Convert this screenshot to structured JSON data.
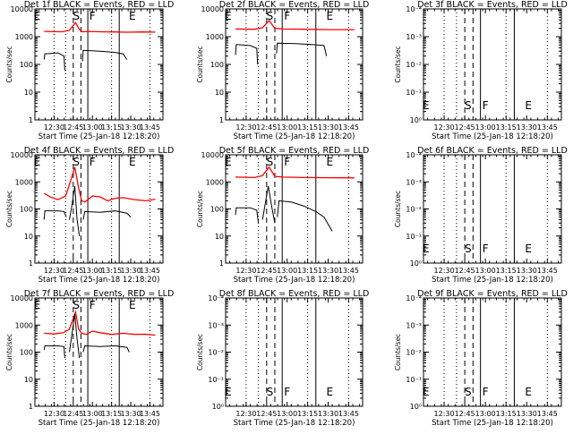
{
  "chart_data": [
    {
      "type": "line",
      "title": "Det 1f BLACK = Events, RED = LLD",
      "xlabel": "Start Time (25-Jan-18 12:18:20)",
      "ylabel": "Counts/sec",
      "yscale": "log",
      "ylim": [
        1,
        10000
      ],
      "yticks": [
        "1",
        "10",
        "100",
        "1000",
        "10000"
      ],
      "xticks": [
        "12:30",
        "12:45",
        "13:00",
        "13:15",
        "13:30",
        "13:45"
      ],
      "markers": [
        "E",
        "S",
        "F",
        "E"
      ],
      "series": [
        {
          "name": "RED = LLD",
          "color": "#ff0000",
          "segments": [
            [
              [
                12.37,
                1550
              ],
              [
                12.6,
                1500
              ],
              [
                12.7,
                1700
              ],
              [
                12.78,
                3200
              ],
              [
                12.83,
                1800
              ],
              [
                12.87,
                1500
              ],
              [
                12.95,
                1550
              ],
              [
                13.1,
                1500
              ],
              [
                13.3,
                1480
              ],
              [
                13.45,
                1450
              ],
              [
                13.65,
                1480
              ],
              [
                13.82,
                1460
              ]
            ]
          ]
        },
        {
          "name": "BLACK = Events",
          "color": "#000000",
          "segments": [
            [
              [
                12.37,
                150
              ],
              [
                12.38,
                240
              ],
              [
                12.55,
                260
              ],
              [
                12.63,
                200
              ],
              [
                12.64,
                60
              ]
            ],
            [
              [
                12.87,
                130
              ],
              [
                12.88,
                320
              ],
              [
                13.1,
                300
              ],
              [
                13.3,
                270
              ],
              [
                13.4,
                240
              ],
              [
                13.45,
                150
              ]
            ]
          ]
        }
      ]
    },
    {
      "type": "line",
      "title": "Det 2f BLACK = Events, RED = LLD",
      "xlabel": "Start Time (25-Jan-18 12:18:20)",
      "ylabel": "Counts/sec",
      "yscale": "log",
      "ylim": [
        1,
        10000
      ],
      "yticks": [
        "1",
        "10",
        "100",
        "1000",
        "10000"
      ],
      "xticks": [
        "12:30",
        "12:45",
        "13:00",
        "13:15",
        "13:30",
        "13:45"
      ],
      "markers": [
        "E",
        "S",
        "F",
        "E"
      ],
      "series": [
        {
          "name": "RED = LLD",
          "color": "#ff0000",
          "segments": [
            [
              [
                12.37,
                1900
              ],
              [
                12.6,
                1850
              ],
              [
                12.7,
                2100
              ],
              [
                12.78,
                3800
              ],
              [
                12.85,
                2000
              ],
              [
                12.95,
                1900
              ],
              [
                13.2,
                1850
              ],
              [
                13.5,
                1800
              ],
              [
                13.82,
                1800
              ]
            ]
          ]
        },
        {
          "name": "BLACK = Events",
          "color": "#000000",
          "segments": [
            [
              [
                12.37,
                220
              ],
              [
                12.38,
                520
              ],
              [
                12.55,
                480
              ],
              [
                12.63,
                380
              ],
              [
                12.64,
                100
              ]
            ],
            [
              [
                12.87,
                250
              ],
              [
                12.88,
                580
              ],
              [
                13.1,
                560
              ],
              [
                13.3,
                520
              ],
              [
                13.45,
                480
              ],
              [
                13.48,
                200
              ]
            ]
          ]
        }
      ]
    },
    {
      "type": "line",
      "title": "Det 3f BLACK = Events, RED = LLD",
      "xlabel": "Start Time (25-Jan-18 12:18:20)",
      "ylabel": "Counts/sec",
      "yscale": "log",
      "ylim": [
        1,
        0.0001
      ],
      "yticks": [
        "10⁰",
        "10⁻¹",
        "10⁻²",
        "10⁻³",
        "10⁻⁴"
      ],
      "xticks": [
        "12:30",
        "12:45",
        "13:00",
        "13:15",
        "13:30",
        "13:45"
      ],
      "markers": [
        "E",
        "S",
        "F",
        "E"
      ],
      "series": []
    },
    {
      "type": "line",
      "title": "Det 4f BLACK = Events, RED = LLD",
      "xlabel": "Start Time (25-Jan-18 12:18:20)",
      "ylabel": "Counts/sec",
      "yscale": "log",
      "ylim": [
        1,
        10000
      ],
      "yticks": [
        "1",
        "10",
        "100",
        "1000",
        "10000"
      ],
      "xticks": [
        "12:30",
        "12:45",
        "13:00",
        "13:15",
        "13:30",
        "13:45"
      ],
      "markers": [
        "E",
        "S",
        "F",
        "E"
      ],
      "series": [
        {
          "name": "RED = LLD",
          "color": "#ff0000",
          "segments": [
            [
              [
                12.37,
                380
              ],
              [
                12.45,
                280
              ],
              [
                12.55,
                220
              ],
              [
                12.65,
                300
              ],
              [
                12.72,
                1200
              ],
              [
                12.77,
                3500
              ],
              [
                12.82,
                600
              ],
              [
                12.86,
                200
              ],
              [
                12.9,
                180
              ],
              [
                13.0,
                300
              ],
              [
                13.1,
                280
              ],
              [
                13.2,
                200
              ],
              [
                13.3,
                250
              ],
              [
                13.4,
                260
              ],
              [
                13.55,
                220
              ],
              [
                13.7,
                200
              ],
              [
                13.82,
                230
              ]
            ]
          ]
        },
        {
          "name": "BLACK = Events",
          "color": "#000000",
          "segments": [
            [
              [
                12.37,
                40
              ],
              [
                12.38,
                85
              ],
              [
                12.55,
                85
              ],
              [
                12.63,
                80
              ],
              [
                12.66,
                50
              ]
            ],
            [
              [
                12.7,
                40
              ],
              [
                12.73,
                120
              ],
              [
                12.77,
                700
              ],
              [
                12.8,
                40
              ],
              [
                12.83,
                10
              ]
            ],
            [
              [
                12.88,
                40
              ],
              [
                12.9,
                80
              ],
              [
                13.1,
                75
              ],
              [
                13.3,
                85
              ],
              [
                13.45,
                70
              ],
              [
                13.5,
                50
              ]
            ]
          ]
        }
      ]
    },
    {
      "type": "line",
      "title": "Det 5f BLACK = Events, RED = LLD",
      "xlabel": "Start Time (25-Jan-18 12:18:20)",
      "ylabel": "Counts/sec",
      "yscale": "log",
      "ylim": [
        1,
        10000
      ],
      "yticks": [
        "1",
        "10",
        "100",
        "1000",
        "10000"
      ],
      "xticks": [
        "12:30",
        "12:45",
        "13:00",
        "13:15",
        "13:30",
        "13:45"
      ],
      "markers": [
        "E",
        "S",
        "F",
        "E"
      ],
      "series": [
        {
          "name": "RED = LLD",
          "color": "#ff0000",
          "segments": [
            [
              [
                12.37,
                1500
              ],
              [
                12.6,
                1450
              ],
              [
                12.7,
                1700
              ],
              [
                12.78,
                3500
              ],
              [
                12.85,
                1600
              ],
              [
                12.95,
                1500
              ],
              [
                13.2,
                1450
              ],
              [
                13.5,
                1420
              ],
              [
                13.82,
                1400
              ]
            ]
          ]
        },
        {
          "name": "BLACK = Events",
          "color": "#000000",
          "segments": [
            [
              [
                12.37,
                60
              ],
              [
                12.38,
                110
              ],
              [
                12.55,
                110
              ],
              [
                12.63,
                90
              ],
              [
                12.65,
                30
              ]
            ],
            [
              [
                12.7,
                40
              ],
              [
                12.77,
                700
              ],
              [
                12.82,
                90
              ],
              [
                12.85,
                30
              ]
            ],
            [
              [
                12.88,
                50
              ],
              [
                12.9,
                200
              ],
              [
                13.05,
                180
              ],
              [
                13.2,
                130
              ],
              [
                13.35,
                80
              ],
              [
                13.45,
                50
              ],
              [
                13.55,
                15
              ]
            ]
          ]
        }
      ]
    },
    {
      "type": "line",
      "title": "Det 6f BLACK = Events, RED = LLD",
      "xlabel": "Start Time (25-Jan-18 12:18:20)",
      "ylabel": "Counts/sec",
      "yscale": "log",
      "ylim": [
        1,
        0.0001
      ],
      "yticks": [
        "10⁰",
        "10⁻¹",
        "10⁻²",
        "10⁻³",
        "10⁻⁴"
      ],
      "xticks": [
        "12:30",
        "12:45",
        "13:00",
        "13:15",
        "13:30",
        "13:45"
      ],
      "markers": [
        "E",
        "S",
        "F",
        "E"
      ],
      "series": []
    },
    {
      "type": "line",
      "title": "Det 7f BLACK = Events, RED = LLD",
      "xlabel": "Start Time (25-Jan-18 12:18:20)",
      "ylabel": "Counts/sec",
      "yscale": "log",
      "ylim": [
        1,
        10000
      ],
      "yticks": [
        "1",
        "10",
        "100",
        "1000",
        "10000"
      ],
      "xticks": [
        "12:30",
        "12:45",
        "13:00",
        "13:15",
        "13:30",
        "13:45"
      ],
      "markers": [
        "E",
        "S",
        "F",
        "E"
      ],
      "series": [
        {
          "name": "RED = LLD",
          "color": "#ff0000",
          "segments": [
            [
              [
                12.37,
                500
              ],
              [
                12.5,
                470
              ],
              [
                12.62,
                520
              ],
              [
                12.7,
                700
              ],
              [
                12.78,
                3000
              ],
              [
                12.82,
                700
              ],
              [
                12.86,
                500
              ],
              [
                12.92,
                450
              ],
              [
                13.0,
                600
              ],
              [
                13.1,
                520
              ],
              [
                13.25,
                450
              ],
              [
                13.4,
                500
              ],
              [
                13.55,
                450
              ],
              [
                13.7,
                460
              ],
              [
                13.82,
                420
              ]
            ]
          ]
        },
        {
          "name": "BLACK = Events",
          "color": "#000000",
          "segments": [
            [
              [
                12.37,
                120
              ],
              [
                12.38,
                170
              ],
              [
                12.55,
                170
              ],
              [
                12.63,
                160
              ],
              [
                12.64,
                60
              ]
            ],
            [
              [
                12.7,
                100
              ],
              [
                12.77,
                2500
              ],
              [
                12.8,
                300
              ],
              [
                12.83,
                60
              ]
            ],
            [
              [
                12.88,
                100
              ],
              [
                12.9,
                170
              ],
              [
                13.1,
                160
              ],
              [
                13.3,
                170
              ],
              [
                13.45,
                150
              ],
              [
                13.48,
                100
              ]
            ]
          ]
        }
      ]
    },
    {
      "type": "line",
      "title": "Det 8f BLACK = Events, RED = LLD",
      "xlabel": "Start Time (25-Jan-18 12:18:20)",
      "ylabel": "Counts/sec",
      "yscale": "log",
      "ylim": [
        1,
        0.0001
      ],
      "yticks": [
        "10⁰",
        "10⁻¹",
        "10⁻²",
        "10⁻³",
        "10⁻⁴"
      ],
      "xticks": [
        "12:30",
        "12:45",
        "13:00",
        "13:15",
        "13:30",
        "13:45"
      ],
      "markers": [
        "E",
        "S",
        "F",
        "E"
      ],
      "series": []
    },
    {
      "type": "line",
      "title": "Det 9f BLACK = Events, RED = LLD",
      "xlabel": "Start Time (25-Jan-18 12:18:20)",
      "ylabel": "Counts/sec",
      "yscale": "log",
      "ylim": [
        1,
        0.0001
      ],
      "yticks": [
        "10⁰",
        "10⁻¹",
        "10⁻²",
        "10⁻³",
        "10⁻⁴"
      ],
      "xticks": [
        "12:30",
        "12:45",
        "13:00",
        "13:15",
        "13:30",
        "13:45"
      ],
      "markers": [
        "E",
        "S",
        "F",
        "E"
      ],
      "series": []
    }
  ]
}
